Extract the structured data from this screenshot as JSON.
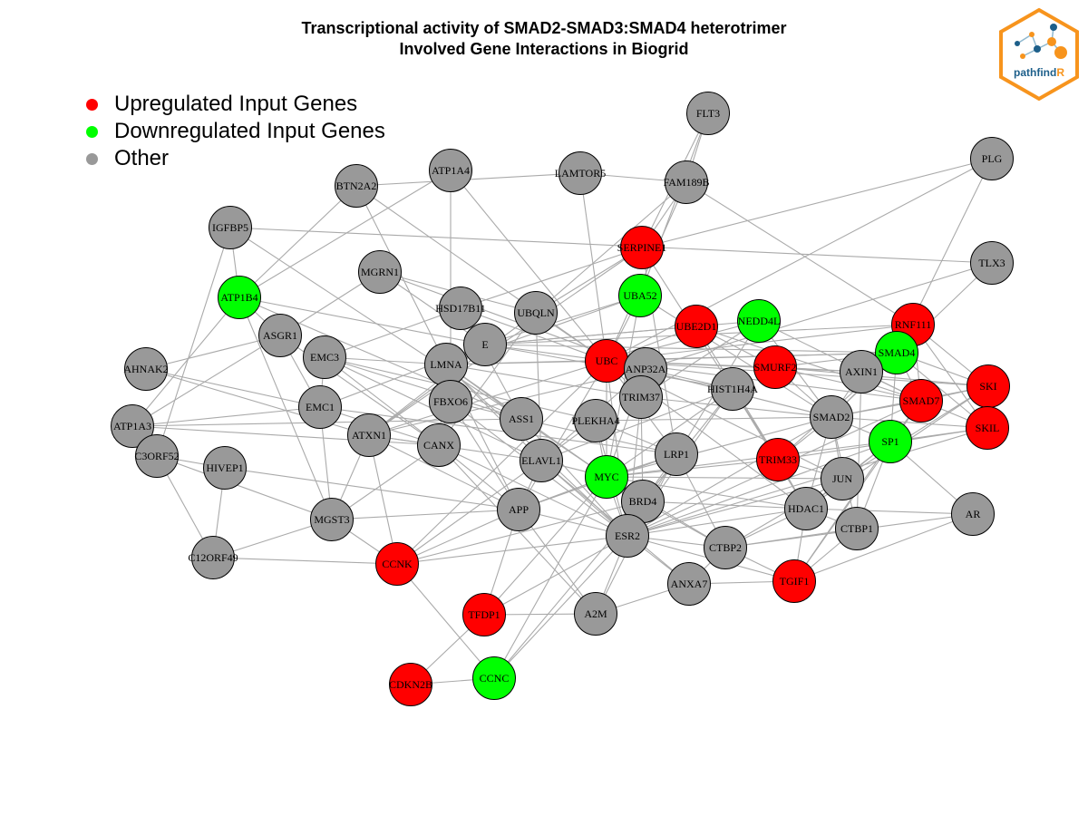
{
  "title": {
    "line1": "Transcriptional activity of SMAD2-SMAD3:SMAD4 heterotrimer",
    "line2": "Involved Gene Interactions in Biogrid"
  },
  "legend": [
    {
      "label": "Upregulated Input Genes",
      "color": "#ff0000"
    },
    {
      "label": "Downregulated Input Genes",
      "color": "#00ff00"
    },
    {
      "label": "Other",
      "color": "#999999"
    }
  ],
  "logo": {
    "text_a": "pathfind",
    "text_b": "R",
    "color_a": "#1d5f8a",
    "color_b": "#f7941d",
    "icon": "network-hexagon-icon"
  },
  "colors": {
    "up": "#ff0000",
    "down": "#00ff00",
    "other": "#999999",
    "edge": "#aaaaaa"
  },
  "nodes": [
    {
      "id": "FLT3",
      "type": "other"
    },
    {
      "id": "PLG",
      "type": "other"
    },
    {
      "id": "LAMTOR5",
      "type": "other"
    },
    {
      "id": "FAM189B",
      "type": "other"
    },
    {
      "id": "ATP1A4",
      "type": "other"
    },
    {
      "id": "BTN2A2",
      "type": "other"
    },
    {
      "id": "IGFBP5",
      "type": "other"
    },
    {
      "id": "SERPINE1",
      "type": "up"
    },
    {
      "id": "TLX3",
      "type": "other"
    },
    {
      "id": "MGRN1",
      "type": "other"
    },
    {
      "id": "ATP1B4",
      "type": "down"
    },
    {
      "id": "UBA52",
      "type": "down"
    },
    {
      "id": "HSD17B11",
      "type": "other"
    },
    {
      "id": "UBQLN",
      "type": "other"
    },
    {
      "id": "UBE2D1",
      "type": "up"
    },
    {
      "id": "NEDD4L",
      "type": "down"
    },
    {
      "id": "RNF111",
      "type": "up"
    },
    {
      "id": "ASGR1",
      "type": "other"
    },
    {
      "id": "E",
      "type": "other"
    },
    {
      "id": "SMAD4",
      "type": "down"
    },
    {
      "id": "EMC3",
      "type": "other"
    },
    {
      "id": "UBC",
      "type": "up"
    },
    {
      "id": "AHNAK2",
      "type": "other"
    },
    {
      "id": "LMNA",
      "type": "other"
    },
    {
      "id": "ANP32A",
      "type": "other"
    },
    {
      "id": "SMURF2",
      "type": "up"
    },
    {
      "id": "AXIN1",
      "type": "other"
    },
    {
      "id": "SKI",
      "type": "up"
    },
    {
      "id": "HIST1H4A",
      "type": "other"
    },
    {
      "id": "TRIM37",
      "type": "other"
    },
    {
      "id": "SMAD7",
      "type": "up"
    },
    {
      "id": "FBXO6",
      "type": "other"
    },
    {
      "id": "EMC1",
      "type": "other"
    },
    {
      "id": "ATP1A3",
      "type": "other"
    },
    {
      "id": "ASS1",
      "type": "other"
    },
    {
      "id": "PLEKHA4",
      "type": "other"
    },
    {
      "id": "SMAD2",
      "type": "other"
    },
    {
      "id": "SKIL",
      "type": "up"
    },
    {
      "id": "ATXN1",
      "type": "other"
    },
    {
      "id": "CANX",
      "type": "other"
    },
    {
      "id": "SP1",
      "type": "down"
    },
    {
      "id": "C3ORF52",
      "type": "other"
    },
    {
      "id": "HIVEP1",
      "type": "other"
    },
    {
      "id": "LRP1",
      "type": "other"
    },
    {
      "id": "ELAVL1",
      "type": "other"
    },
    {
      "id": "TRIM33",
      "type": "up"
    },
    {
      "id": "MYC",
      "type": "down"
    },
    {
      "id": "JUN",
      "type": "other"
    },
    {
      "id": "BRD4",
      "type": "other"
    },
    {
      "id": "HDAC1",
      "type": "other"
    },
    {
      "id": "APP",
      "type": "other"
    },
    {
      "id": "AR",
      "type": "other"
    },
    {
      "id": "MGST3",
      "type": "other"
    },
    {
      "id": "CTBP1",
      "type": "other"
    },
    {
      "id": "ESR2",
      "type": "other"
    },
    {
      "id": "CTBP2",
      "type": "other"
    },
    {
      "id": "C12ORF49",
      "type": "other"
    },
    {
      "id": "CCNK",
      "type": "up"
    },
    {
      "id": "ANXA7",
      "type": "other"
    },
    {
      "id": "TGIF1",
      "type": "up"
    },
    {
      "id": "TFDP1",
      "type": "up"
    },
    {
      "id": "A2M",
      "type": "other"
    },
    {
      "id": "CCNC",
      "type": "down"
    },
    {
      "id": "CDKN2B",
      "type": "up"
    }
  ],
  "edges": [
    [
      "FLT3",
      "FAM189B"
    ],
    [
      "FLT3",
      "SERPINE1"
    ],
    [
      "FLT3",
      "UBA52"
    ],
    [
      "PLG",
      "SERPINE1"
    ],
    [
      "PLG",
      "SMAD4"
    ],
    [
      "PLG",
      "UBC"
    ],
    [
      "LAMTOR5",
      "FAM189B"
    ],
    [
      "LAMTOR5",
      "BTN2A2"
    ],
    [
      "LAMTOR5",
      "UBC"
    ],
    [
      "FAM189B",
      "SERPINE1"
    ],
    [
      "FAM189B",
      "RNF111"
    ],
    [
      "FAM189B",
      "UBQLN"
    ],
    [
      "FAM189B",
      "UBC"
    ],
    [
      "ATP1A4",
      "ATP1B4"
    ],
    [
      "ATP1A4",
      "UBC"
    ],
    [
      "ATP1A4",
      "FBXO6"
    ],
    [
      "BTN2A2",
      "ATP1B4"
    ],
    [
      "BTN2A2",
      "LMNA"
    ],
    [
      "BTN2A2",
      "UBC"
    ],
    [
      "IGFBP5",
      "TLX3"
    ],
    [
      "IGFBP5",
      "ATP1B4"
    ],
    [
      "IGFBP5",
      "C3ORF52"
    ],
    [
      "IGFBP5",
      "ASS1"
    ],
    [
      "SERPINE1",
      "UBQLN"
    ],
    [
      "SERPINE1",
      "HSD17B11"
    ],
    [
      "SERPINE1",
      "ATXN1"
    ],
    [
      "SERPINE1",
      "LRP1"
    ],
    [
      "SERPINE1",
      "TRIM33"
    ],
    [
      "TLX3",
      "SMAD2"
    ],
    [
      "TLX3",
      "ANP32A"
    ],
    [
      "MGRN1",
      "E"
    ],
    [
      "MGRN1",
      "ASGR1"
    ],
    [
      "MGRN1",
      "ANP32A"
    ],
    [
      "MGRN1",
      "UBQLN"
    ],
    [
      "ATP1B4",
      "ATP1A3"
    ],
    [
      "ATP1B4",
      "ASGR1"
    ],
    [
      "ATP1B4",
      "ASS1"
    ],
    [
      "ATP1B4",
      "MGST3"
    ],
    [
      "ATP1B4",
      "E"
    ],
    [
      "UBA52",
      "UBC"
    ],
    [
      "UBA52",
      "LMNA"
    ],
    [
      "UBA52",
      "E"
    ],
    [
      "UBA52",
      "SMAD2"
    ],
    [
      "UBA52",
      "MYC"
    ],
    [
      "HSD17B11",
      "UBC"
    ],
    [
      "HSD17B11",
      "ASS1"
    ],
    [
      "HSD17B11",
      "E"
    ],
    [
      "HSD17B11",
      "EMC3"
    ],
    [
      "UBQLN",
      "UBC"
    ],
    [
      "UBQLN",
      "ATXN1"
    ],
    [
      "UBQLN",
      "ELAVL1"
    ],
    [
      "UBQLN",
      "CANX"
    ],
    [
      "UBE2D1",
      "SMURF2"
    ],
    [
      "UBE2D1",
      "UBC"
    ],
    [
      "UBE2D1",
      "TRIM33"
    ],
    [
      "UBE2D1",
      "SMAD7"
    ],
    [
      "UBE2D1",
      "E"
    ],
    [
      "NEDD4L",
      "SMAD7"
    ],
    [
      "NEDD4L",
      "SMAD2"
    ],
    [
      "NEDD4L",
      "UBC"
    ],
    [
      "NEDD4L",
      "TRIM37"
    ],
    [
      "NEDD4L",
      "E"
    ],
    [
      "NEDD4L",
      "ESR2"
    ],
    [
      "RNF111",
      "SMAD7"
    ],
    [
      "RNF111",
      "SKI"
    ],
    [
      "RNF111",
      "SKIL"
    ],
    [
      "RNF111",
      "SMAD4"
    ],
    [
      "RNF111",
      "UBC"
    ],
    [
      "RNF111",
      "E"
    ],
    [
      "ASGR1",
      "AHNAK2"
    ],
    [
      "ASGR1",
      "EMC1"
    ],
    [
      "ASGR1",
      "CANX"
    ],
    [
      "ASGR1",
      "ATP1A3"
    ],
    [
      "E",
      "UBC"
    ],
    [
      "E",
      "SMAD4"
    ],
    [
      "E",
      "LMNA"
    ],
    [
      "E",
      "HIST1H4A"
    ],
    [
      "E",
      "ATXN1"
    ],
    [
      "E",
      "EMC1"
    ],
    [
      "SMAD4",
      "SMAD2"
    ],
    [
      "SMAD4",
      "SKI"
    ],
    [
      "SMAD4",
      "SMAD7"
    ],
    [
      "SMAD4",
      "SMURF2"
    ],
    [
      "SMAD4",
      "AXIN1"
    ],
    [
      "SMAD4",
      "SKIL"
    ],
    [
      "SMAD4",
      "SP1"
    ],
    [
      "SMAD4",
      "TRIM33"
    ],
    [
      "SMAD4",
      "UBC"
    ],
    [
      "SMAD4",
      "LMNA"
    ],
    [
      "EMC3",
      "EMC1"
    ],
    [
      "EMC3",
      "ASS1"
    ],
    [
      "EMC3",
      "ELAVL1"
    ],
    [
      "EMC3",
      "LMNA"
    ],
    [
      "EMC3",
      "CANX"
    ],
    [
      "EMC3",
      "PLEKHA4"
    ],
    [
      "UBC",
      "SMURF2"
    ],
    [
      "UBC",
      "SMAD7"
    ],
    [
      "UBC",
      "SKI"
    ],
    [
      "UBC",
      "AXIN1"
    ],
    [
      "UBC",
      "SMAD2"
    ],
    [
      "UBC",
      "MYC"
    ],
    [
      "UBC",
      "LRP1"
    ],
    [
      "UBC",
      "ESR2"
    ],
    [
      "UBC",
      "CCNK"
    ],
    [
      "UBC",
      "APP"
    ],
    [
      "UBC",
      "LMNA"
    ],
    [
      "UBC",
      "ATXN1"
    ],
    [
      "UBC",
      "TRIM37"
    ],
    [
      "UBC",
      "JUN"
    ],
    [
      "UBC",
      "HDAC1"
    ],
    [
      "AHNAK2",
      "EMC1"
    ],
    [
      "AHNAK2",
      "ATXN1"
    ],
    [
      "LMNA",
      "ASS1"
    ],
    [
      "LMNA",
      "FBXO6"
    ],
    [
      "LMNA",
      "CANX"
    ],
    [
      "LMNA",
      "APP"
    ],
    [
      "LMNA",
      "MYC"
    ],
    [
      "LMNA",
      "ELAVL1"
    ],
    [
      "LMNA",
      "ESR2"
    ],
    [
      "ANP32A",
      "HIST1H4A"
    ],
    [
      "ANP32A",
      "ATXN1"
    ],
    [
      "ANP32A",
      "MYC"
    ],
    [
      "ANP32A",
      "ELAVL1"
    ],
    [
      "SMURF2",
      "SMAD7"
    ],
    [
      "SMURF2",
      "SKI"
    ],
    [
      "SMURF2",
      "SMAD2"
    ],
    [
      "SMURF2",
      "AXIN1"
    ],
    [
      "AXIN1",
      "SMAD7"
    ],
    [
      "AXIN1",
      "SMAD2"
    ],
    [
      "AXIN1",
      "CTBP1"
    ],
    [
      "SKI",
      "SMAD2"
    ],
    [
      "SKI",
      "SKIL"
    ],
    [
      "SKI",
      "HDAC1"
    ],
    [
      "SKI",
      "JUN"
    ],
    [
      "SKI",
      "SMAD7"
    ],
    [
      "HIST1H4A",
      "HDAC1"
    ],
    [
      "HIST1H4A",
      "MYC"
    ],
    [
      "HIST1H4A",
      "BRD4"
    ],
    [
      "HIST1H4A",
      "ELAVL1"
    ],
    [
      "HIST1H4A",
      "ESR2"
    ],
    [
      "HIST1H4A",
      "TRIM33"
    ],
    [
      "TRIM37",
      "BRD4"
    ],
    [
      "TRIM37",
      "ESR2"
    ],
    [
      "TRIM37",
      "SMAD2"
    ],
    [
      "TRIM37",
      "LMNA"
    ],
    [
      "SMAD7",
      "SMAD2"
    ],
    [
      "SMAD7",
      "SKIL"
    ],
    [
      "SMAD7",
      "SP1"
    ],
    [
      "SMAD7",
      "ESR2"
    ],
    [
      "SMAD7",
      "TGIF1"
    ],
    [
      "FBXO6",
      "CANX"
    ],
    [
      "FBXO6",
      "ESR2"
    ],
    [
      "FBXO6",
      "APP"
    ],
    [
      "FBXO6",
      "ASS1"
    ],
    [
      "EMC1",
      "ATP1A3"
    ],
    [
      "EMC1",
      "CANX"
    ],
    [
      "EMC1",
      "LRP1"
    ],
    [
      "EMC1",
      "MGST3"
    ],
    [
      "ATP1A3",
      "C3ORF52"
    ],
    [
      "ATP1A3",
      "ASS1"
    ],
    [
      "ATP1A3",
      "CANX"
    ],
    [
      "ASS1",
      "MYC"
    ],
    [
      "ASS1",
      "ESR2"
    ],
    [
      "ASS1",
      "LRP1"
    ],
    [
      "PLEKHA4",
      "LRP1"
    ],
    [
      "PLEKHA4",
      "MYC"
    ],
    [
      "PLEKHA4",
      "ELAVL1"
    ],
    [
      "PLEKHA4",
      "ESR2"
    ],
    [
      "PLEKHA4",
      "SMAD2"
    ],
    [
      "SMAD2",
      "SP1"
    ],
    [
      "SMAD2",
      "TRIM33"
    ],
    [
      "SMAD2",
      "JUN"
    ],
    [
      "SMAD2",
      "HDAC1"
    ],
    [
      "SMAD2",
      "ESR2"
    ],
    [
      "SMAD2",
      "SKIL"
    ],
    [
      "SMAD2",
      "MYC"
    ],
    [
      "SMAD2",
      "CTBP1"
    ],
    [
      "SKIL",
      "SP1"
    ],
    [
      "SKIL",
      "TRIM33"
    ],
    [
      "SKIL",
      "ESR2"
    ],
    [
      "ATXN1",
      "MGST3"
    ],
    [
      "ATXN1",
      "CCNK"
    ],
    [
      "ATXN1",
      "ELAVL1"
    ],
    [
      "ATXN1",
      "APP"
    ],
    [
      "ATXN1",
      "CANX"
    ],
    [
      "CANX",
      "APP"
    ],
    [
      "CANX",
      "MGST3"
    ],
    [
      "CANX",
      "ESR2"
    ],
    [
      "CANX",
      "A2M"
    ],
    [
      "SP1",
      "JUN"
    ],
    [
      "SP1",
      "HDAC1"
    ],
    [
      "SP1",
      "MYC"
    ],
    [
      "SP1",
      "CTBP1"
    ],
    [
      "SP1",
      "AR"
    ],
    [
      "SP1",
      "TGIF1"
    ],
    [
      "SP1",
      "ESR2"
    ],
    [
      "C3ORF52",
      "HIVEP1"
    ],
    [
      "C3ORF52",
      "C12ORF49"
    ],
    [
      "C3ORF52",
      "MGST3"
    ],
    [
      "HIVEP1",
      "APP"
    ],
    [
      "HIVEP1",
      "C12ORF49"
    ],
    [
      "LRP1",
      "APP"
    ],
    [
      "LRP1",
      "A2M"
    ],
    [
      "LRP1",
      "MYC"
    ],
    [
      "LRP1",
      "BRD4"
    ],
    [
      "LRP1",
      "CTBP2"
    ],
    [
      "ELAVL1",
      "MYC"
    ],
    [
      "ELAVL1",
      "CCNK"
    ],
    [
      "ELAVL1",
      "APP"
    ],
    [
      "ELAVL1",
      "ESR2"
    ],
    [
      "ELAVL1",
      "ANXA7"
    ],
    [
      "TRIM33",
      "HDAC1"
    ],
    [
      "TRIM33",
      "MYC"
    ],
    [
      "TRIM33",
      "JUN"
    ],
    [
      "MYC",
      "BRD4"
    ],
    [
      "MYC",
      "HDAC1"
    ],
    [
      "MYC",
      "JUN"
    ],
    [
      "MYC",
      "ESR2"
    ],
    [
      "MYC",
      "TFDP1"
    ],
    [
      "MYC",
      "CCNC"
    ],
    [
      "MYC",
      "APP"
    ],
    [
      "MYC",
      "CTBP2"
    ],
    [
      "JUN",
      "HDAC1"
    ],
    [
      "JUN",
      "ESR2"
    ],
    [
      "JUN",
      "CTBP2"
    ],
    [
      "BRD4",
      "HDAC1"
    ],
    [
      "BRD4",
      "CCNK"
    ],
    [
      "BRD4",
      "ESR2"
    ],
    [
      "BRD4",
      "CCNC"
    ],
    [
      "BRD4",
      "CTBP2"
    ],
    [
      "HDAC1",
      "CTBP1"
    ],
    [
      "HDAC1",
      "CTBP2"
    ],
    [
      "HDAC1",
      "TGIF1"
    ],
    [
      "HDAC1",
      "ESR2"
    ],
    [
      "HDAC1",
      "AR"
    ],
    [
      "APP",
      "A2M"
    ],
    [
      "APP",
      "MGST3"
    ],
    [
      "APP",
      "TFDP1"
    ],
    [
      "APP",
      "CCNK"
    ],
    [
      "APP",
      "ESR2"
    ],
    [
      "AR",
      "CTBP2"
    ],
    [
      "AR",
      "TGIF1"
    ],
    [
      "MGST3",
      "C12ORF49"
    ],
    [
      "MGST3",
      "CCNK"
    ],
    [
      "CTBP1",
      "TGIF1"
    ],
    [
      "CTBP1",
      "CTBP2"
    ],
    [
      "ESR2",
      "CTBP2"
    ],
    [
      "ESR2",
      "ANXA7"
    ],
    [
      "ESR2",
      "CCNK"
    ],
    [
      "ESR2",
      "CCNC"
    ],
    [
      "ESR2",
      "TFDP1"
    ],
    [
      "ESR2",
      "TGIF1"
    ],
    [
      "CTBP2",
      "TGIF1"
    ],
    [
      "CTBP2",
      "ANXA7"
    ],
    [
      "C12ORF49",
      "CCNK"
    ],
    [
      "CCNK",
      "CCNC"
    ],
    [
      "ANXA7",
      "TGIF1"
    ],
    [
      "ANXA7",
      "A2M"
    ],
    [
      "TFDP1",
      "CDKN2B"
    ],
    [
      "TFDP1",
      "A2M"
    ],
    [
      "CCNC",
      "CDKN2B"
    ],
    [
      "A2M",
      "ESR2"
    ]
  ]
}
